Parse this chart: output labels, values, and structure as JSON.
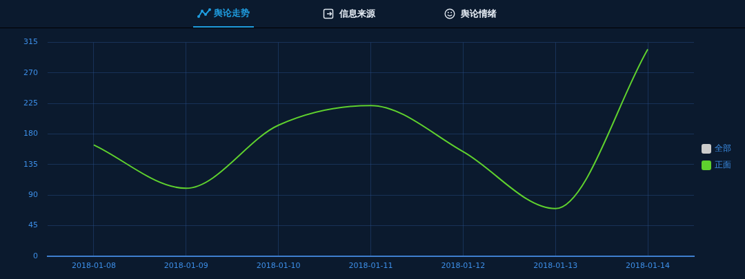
{
  "chart_data": {
    "type": "line",
    "title": "舆论走势",
    "annotations": [
      "信息来源",
      "舆论情绪"
    ],
    "categories": [
      "2018-01-08",
      "2018-01-09",
      "2018-01-10",
      "2018-01-11",
      "2018-01-12",
      "2018-01-13",
      "2018-01-14"
    ],
    "series": [
      {
        "name": "全部",
        "color": "#cccccc",
        "values": [
          null,
          null,
          null,
          null,
          null,
          null,
          null
        ]
      },
      {
        "name": "正面",
        "color": "#5fd12e",
        "values": [
          164,
          100,
          193,
          222,
          154,
          70,
          305
        ]
      }
    ],
    "ylim": [
      0,
      315
    ],
    "yticks": [
      0,
      45,
      90,
      135,
      180,
      225,
      270,
      315
    ],
    "grid": true,
    "legend": "right",
    "marker": "none"
  }
}
